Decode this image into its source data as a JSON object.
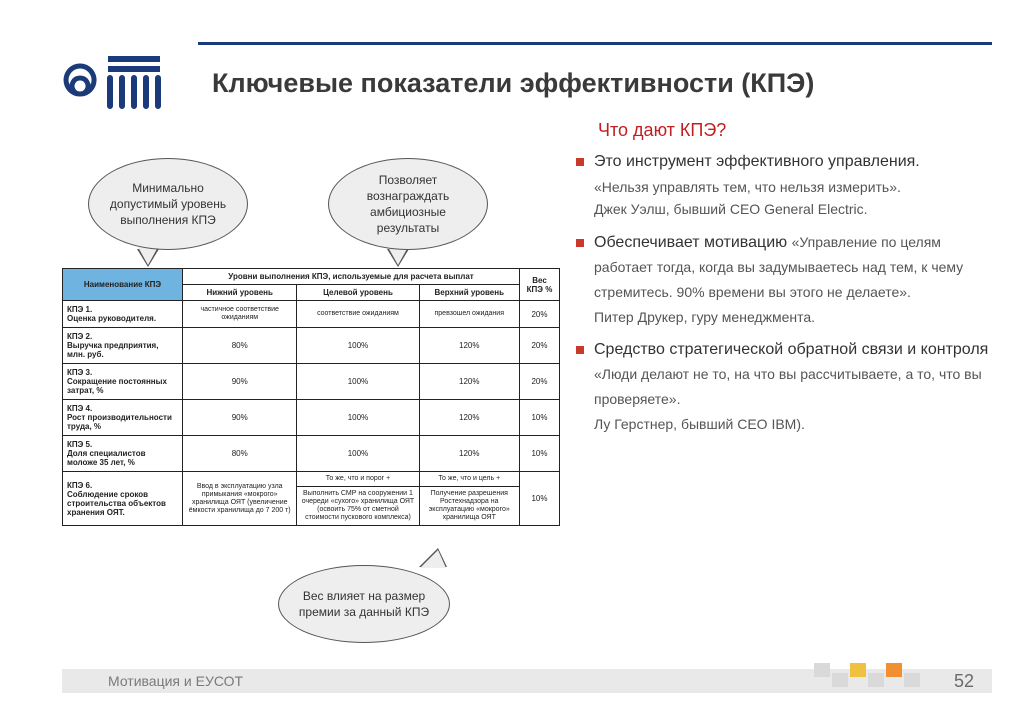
{
  "title": "Ключевые показатели эффективности (КПЭ)",
  "subtitle": "Что дают КПЭ?",
  "callouts": {
    "c1": "Минимально допустимый уровень выполнения КПЭ",
    "c2": "Позволяет вознаграждать амбициозные результаты",
    "c3": "Вес влияет на размер премии за данный КПЭ"
  },
  "table": {
    "header": {
      "name": "Наименование КПЭ",
      "group": "Уровни выполнения КПЭ, используемые для расчета выплат",
      "low": "Нижний уровень",
      "target": "Целевой уровень",
      "high": "Верхний уровень",
      "weight": "Вес КПЭ %"
    },
    "rows": [
      {
        "name": "КПЭ 1.\nОценка руководителя.",
        "low": "частичное соответствие ожиданиям",
        "target": "соответствие ожиданиям",
        "high": "превзошел ожидания",
        "weight": "20%"
      },
      {
        "name": "КПЭ 2.\nВыручка предприятия, млн. руб.",
        "low": "80%",
        "target": "100%",
        "high": "120%",
        "weight": "20%"
      },
      {
        "name": "КПЭ 3.\nСокращение постоянных затрат, %",
        "low": "90%",
        "target": "100%",
        "high": "120%",
        "weight": "20%"
      },
      {
        "name": "КПЭ 4.\nРост производительности труда, %",
        "low": "90%",
        "target": "100%",
        "high": "120%",
        "weight": "10%"
      },
      {
        "name": "КПЭ 5.\nДоля специалистов моложе 35 лет, %",
        "low": "80%",
        "target": "100%",
        "high": "120%",
        "weight": "10%"
      }
    ],
    "row6": {
      "name": "КПЭ 6.\nСоблюдение сроков строительства объектов хранения ОЯТ.",
      "sub_target": "То же, что и порог +",
      "sub_high": "То же, что и цель +",
      "low": "Ввод в эксплуатацию узла примыкания «мокрого» хранилища ОЯТ (увеличение ёмкости хранилища до 7 200 т)",
      "target": "Выполнить СМР на сооружении 1 очереди «сухого» хранилища ОЯТ (освоить 75% от сметной стоимости пускового комплекса)",
      "high": "Получение разрешения Ростехнадзора на эксплуатацию «мокрого» хранилища ОЯТ",
      "weight": "10%"
    }
  },
  "bullets": [
    {
      "lead": "Это инструмент эффективного управления.",
      "sub": "«Нельзя управлять тем, что нельзя измерить».",
      "author": "Джек Уэлш, бывший CEO General Electric."
    },
    {
      "lead": "Обеспечивает мотивацию",
      "sub": "«Управление по целям работает тогда, когда вы задумываетесь над тем, к чему стремитесь. 90% времени вы этого не делаете».",
      "author": "Питер Друкер, гуру менеджмента."
    },
    {
      "lead": "Средство стратегической обратной связи и контроля",
      "sub": "«Люди делают не то, на что вы рассчитываете, а то, что вы проверяете».",
      "author": "Лу Герстнер, бывший CEO IBM)."
    }
  ],
  "footer": {
    "text": "Мотивация и ЕУСОТ",
    "page": "52"
  },
  "colors": {
    "brand_blue": "#1a3a7a",
    "table_header_blue": "#6fb3e0",
    "accent_red": "#c02020",
    "bullet_red": "#c93a2a",
    "footer_bg": "#e9e9e9",
    "sq_colors": [
      "#d9d9d9",
      "#d9d9d9",
      "#f0c040",
      "#d9d9d9",
      "#f09030",
      "#d9d9d9"
    ]
  }
}
